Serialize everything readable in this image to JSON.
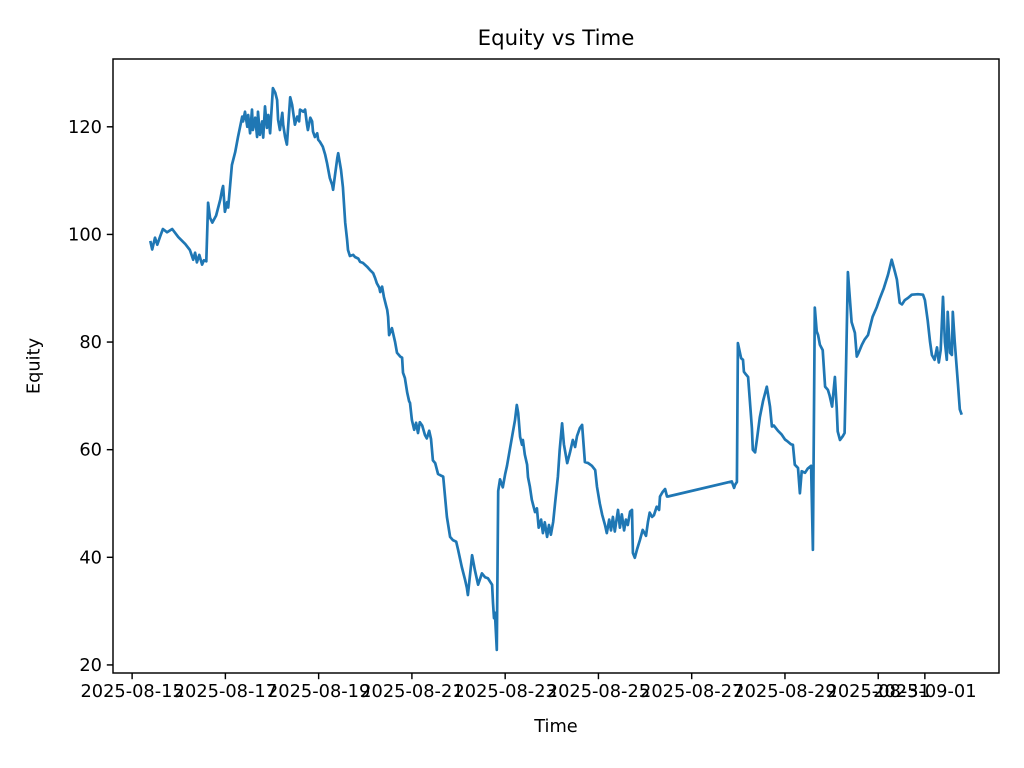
{
  "chart_data": {
    "type": "line",
    "title": "Equity vs Time",
    "xlabel": "Time",
    "ylabel": "Equity",
    "series_name": "Equity",
    "line_color": "#1f77b4",
    "background_color": "#ffffff",
    "text_color": "#000000",
    "grid": false,
    "legend": "none",
    "x_unit": "days since 2025-08-15 00:00",
    "xlim": [
      -0.41,
      18.59
    ],
    "ylim": [
      18.5,
      132.6
    ],
    "x_tick_positions": [
      0,
      2,
      4,
      6,
      8,
      10,
      12,
      14,
      16,
      17
    ],
    "x_tick_labels": [
      "2025-08-15",
      "2025-08-17",
      "2025-08-19",
      "2025-08-21",
      "2025-08-23",
      "2025-08-25",
      "2025-08-27",
      "2025-08-29",
      "2025-08-31",
      "2025-09-01"
    ],
    "y_tick_positions": [
      20,
      40,
      60,
      80,
      100,
      120
    ],
    "y_tick_labels": [
      "20",
      "40",
      "60",
      "80",
      "100",
      "120"
    ],
    "points": [
      [
        0.39,
        98.8
      ],
      [
        0.43,
        97.2
      ],
      [
        0.49,
        99.4
      ],
      [
        0.54,
        98.1
      ],
      [
        0.6,
        99.6
      ],
      [
        0.66,
        101.0
      ],
      [
        0.75,
        100.4
      ],
      [
        0.86,
        101.0
      ],
      [
        0.99,
        99.5
      ],
      [
        1.14,
        98.2
      ],
      [
        1.24,
        97.1
      ],
      [
        1.31,
        95.3
      ],
      [
        1.35,
        96.6
      ],
      [
        1.39,
        94.8
      ],
      [
        1.44,
        96.2
      ],
      [
        1.5,
        94.4
      ],
      [
        1.54,
        95.2
      ],
      [
        1.59,
        95.0
      ],
      [
        1.63,
        105.9
      ],
      [
        1.67,
        103.1
      ],
      [
        1.72,
        102.2
      ],
      [
        1.8,
        103.5
      ],
      [
        1.89,
        106.5
      ],
      [
        1.93,
        108.3
      ],
      [
        1.95,
        109.0
      ],
      [
        1.99,
        104.2
      ],
      [
        2.04,
        106.0
      ],
      [
        2.06,
        105.0
      ],
      [
        2.14,
        112.9
      ],
      [
        2.21,
        115.3
      ],
      [
        2.27,
        118.1
      ],
      [
        2.36,
        121.9
      ],
      [
        2.38,
        121.0
      ],
      [
        2.42,
        122.8
      ],
      [
        2.47,
        120.0
      ],
      [
        2.49,
        122.2
      ],
      [
        2.53,
        118.8
      ],
      [
        2.57,
        123.2
      ],
      [
        2.59,
        119.4
      ],
      [
        2.64,
        121.7
      ],
      [
        2.68,
        118.1
      ],
      [
        2.7,
        122.8
      ],
      [
        2.74,
        118.5
      ],
      [
        2.79,
        121.0
      ],
      [
        2.81,
        118.0
      ],
      [
        2.85,
        123.8
      ],
      [
        2.89,
        119.8
      ],
      [
        2.92,
        122.2
      ],
      [
        2.96,
        118.8
      ],
      [
        3.02,
        127.2
      ],
      [
        3.07,
        126.3
      ],
      [
        3.11,
        125.0
      ],
      [
        3.13,
        121.3
      ],
      [
        3.17,
        119.4
      ],
      [
        3.22,
        122.6
      ],
      [
        3.24,
        120.4
      ],
      [
        3.28,
        118.1
      ],
      [
        3.32,
        116.7
      ],
      [
        3.39,
        125.5
      ],
      [
        3.43,
        124.1
      ],
      [
        3.49,
        120.4
      ],
      [
        3.54,
        121.9
      ],
      [
        3.58,
        121.0
      ],
      [
        3.6,
        123.2
      ],
      [
        3.67,
        122.8
      ],
      [
        3.71,
        123.2
      ],
      [
        3.75,
        120.4
      ],
      [
        3.77,
        119.4
      ],
      [
        3.82,
        121.7
      ],
      [
        3.86,
        121.0
      ],
      [
        3.88,
        119.1
      ],
      [
        3.92,
        118.1
      ],
      [
        3.97,
        118.8
      ],
      [
        3.99,
        117.6
      ],
      [
        4.03,
        117.2
      ],
      [
        4.09,
        116.3
      ],
      [
        4.14,
        114.8
      ],
      [
        4.18,
        113.3
      ],
      [
        4.2,
        112.3
      ],
      [
        4.24,
        110.5
      ],
      [
        4.29,
        109.2
      ],
      [
        4.31,
        108.3
      ],
      [
        4.35,
        111.0
      ],
      [
        4.4,
        114.2
      ],
      [
        4.42,
        115.1
      ],
      [
        4.48,
        112.0
      ],
      [
        4.52,
        108.8
      ],
      [
        4.57,
        102.2
      ],
      [
        4.61,
        99.0
      ],
      [
        4.63,
        97.1
      ],
      [
        4.67,
        96.0
      ],
      [
        4.74,
        96.2
      ],
      [
        4.78,
        95.8
      ],
      [
        4.85,
        95.5
      ],
      [
        4.89,
        94.9
      ],
      [
        4.95,
        94.7
      ],
      [
        5.04,
        94.0
      ],
      [
        5.1,
        93.4
      ],
      [
        5.17,
        92.8
      ],
      [
        5.21,
        91.9
      ],
      [
        5.25,
        90.9
      ],
      [
        5.3,
        90.1
      ],
      [
        5.32,
        89.3
      ],
      [
        5.36,
        90.3
      ],
      [
        5.4,
        88.4
      ],
      [
        5.45,
        86.6
      ],
      [
        5.47,
        86.0
      ],
      [
        5.49,
        84.7
      ],
      [
        5.51,
        81.3
      ],
      [
        5.57,
        82.6
      ],
      [
        5.64,
        80.0
      ],
      [
        5.68,
        78.0
      ],
      [
        5.75,
        77.3
      ],
      [
        5.79,
        77.1
      ],
      [
        5.81,
        74.3
      ],
      [
        5.85,
        73.3
      ],
      [
        5.9,
        70.6
      ],
      [
        5.94,
        69.0
      ],
      [
        5.96,
        68.7
      ],
      [
        6.0,
        65.5
      ],
      [
        6.05,
        63.7
      ],
      [
        6.09,
        65.0
      ],
      [
        6.13,
        63.1
      ],
      [
        6.17,
        65.1
      ],
      [
        6.22,
        64.5
      ],
      [
        6.28,
        62.7
      ],
      [
        6.32,
        62.1
      ],
      [
        6.37,
        63.5
      ],
      [
        6.41,
        62.0
      ],
      [
        6.45,
        58.0
      ],
      [
        6.5,
        57.5
      ],
      [
        6.56,
        55.5
      ],
      [
        6.62,
        55.2
      ],
      [
        6.67,
        55.0
      ],
      [
        6.75,
        47.5
      ],
      [
        6.82,
        43.8
      ],
      [
        6.88,
        43.2
      ],
      [
        6.95,
        42.9
      ],
      [
        6.99,
        41.4
      ],
      [
        7.07,
        38.2
      ],
      [
        7.14,
        35.8
      ],
      [
        7.18,
        34.3
      ],
      [
        7.2,
        33.0
      ],
      [
        7.29,
        40.4
      ],
      [
        7.35,
        37.6
      ],
      [
        7.42,
        34.9
      ],
      [
        7.5,
        37.0
      ],
      [
        7.57,
        36.3
      ],
      [
        7.63,
        36.1
      ],
      [
        7.72,
        34.9
      ],
      [
        7.74,
        31.5
      ],
      [
        7.76,
        28.7
      ],
      [
        7.78,
        29.7
      ],
      [
        7.82,
        22.8
      ],
      [
        7.85,
        52.3
      ],
      [
        7.89,
        54.5
      ],
      [
        7.95,
        53.0
      ],
      [
        8.0,
        55.5
      ],
      [
        8.04,
        57.0
      ],
      [
        8.1,
        60.0
      ],
      [
        8.17,
        63.5
      ],
      [
        8.21,
        65.5
      ],
      [
        8.25,
        68.3
      ],
      [
        8.28,
        66.8
      ],
      [
        8.32,
        62.4
      ],
      [
        8.36,
        60.9
      ],
      [
        8.38,
        61.8
      ],
      [
        8.42,
        59.1
      ],
      [
        8.47,
        57.2
      ],
      [
        8.49,
        54.9
      ],
      [
        8.53,
        53.1
      ],
      [
        8.57,
        50.7
      ],
      [
        8.6,
        49.7
      ],
      [
        8.64,
        48.4
      ],
      [
        8.68,
        49.1
      ],
      [
        8.72,
        45.5
      ],
      [
        8.77,
        47.0
      ],
      [
        8.81,
        44.5
      ],
      [
        8.85,
        46.5
      ],
      [
        8.9,
        43.8
      ],
      [
        8.94,
        46.0
      ],
      [
        8.98,
        44.2
      ],
      [
        9.03,
        46.6
      ],
      [
        9.07,
        50.1
      ],
      [
        9.13,
        55.0
      ],
      [
        9.17,
        60.0
      ],
      [
        9.22,
        64.9
      ],
      [
        9.26,
        61.0
      ],
      [
        9.33,
        57.5
      ],
      [
        9.39,
        59.5
      ],
      [
        9.45,
        61.8
      ],
      [
        9.5,
        60.5
      ],
      [
        9.54,
        62.5
      ],
      [
        9.6,
        64.0
      ],
      [
        9.65,
        64.6
      ],
      [
        9.71,
        57.7
      ],
      [
        9.78,
        57.5
      ],
      [
        9.86,
        57.0
      ],
      [
        9.93,
        56.2
      ],
      [
        9.97,
        53.1
      ],
      [
        10.03,
        50.0
      ],
      [
        10.08,
        47.9
      ],
      [
        10.14,
        46.0
      ],
      [
        10.18,
        44.5
      ],
      [
        10.23,
        47.0
      ],
      [
        10.27,
        45.0
      ],
      [
        10.31,
        47.5
      ],
      [
        10.35,
        44.8
      ],
      [
        10.42,
        48.8
      ],
      [
        10.46,
        45.5
      ],
      [
        10.5,
        48.0
      ],
      [
        10.55,
        45.0
      ],
      [
        10.59,
        47.0
      ],
      [
        10.63,
        46.0
      ],
      [
        10.68,
        48.5
      ],
      [
        10.72,
        48.8
      ],
      [
        10.74,
        40.8
      ],
      [
        10.78,
        39.9
      ],
      [
        10.83,
        41.5
      ],
      [
        10.89,
        43.2
      ],
      [
        10.95,
        45.1
      ],
      [
        11.02,
        44.0
      ],
      [
        11.06,
        46.5
      ],
      [
        11.1,
        48.3
      ],
      [
        11.15,
        47.5
      ],
      [
        11.19,
        47.8
      ],
      [
        11.25,
        49.4
      ],
      [
        11.3,
        48.8
      ],
      [
        11.32,
        51.3
      ],
      [
        11.38,
        52.2
      ],
      [
        11.43,
        52.7
      ],
      [
        11.47,
        51.3
      ],
      [
        11.49,
        51.3
      ],
      [
        12.86,
        54.1
      ],
      [
        12.91,
        52.9
      ],
      [
        12.93,
        53.5
      ],
      [
        12.97,
        54.0
      ],
      [
        12.99,
        79.8
      ],
      [
        13.06,
        77.0
      ],
      [
        13.1,
        76.7
      ],
      [
        13.12,
        74.5
      ],
      [
        13.16,
        74.0
      ],
      [
        13.21,
        73.5
      ],
      [
        13.29,
        64.0
      ],
      [
        13.31,
        60.0
      ],
      [
        13.36,
        59.5
      ],
      [
        13.4,
        62.0
      ],
      [
        13.46,
        66.0
      ],
      [
        13.53,
        69.0
      ],
      [
        13.61,
        71.7
      ],
      [
        13.68,
        68.0
      ],
      [
        13.72,
        64.3
      ],
      [
        13.76,
        64.5
      ],
      [
        13.85,
        63.5
      ],
      [
        13.93,
        62.8
      ],
      [
        14.0,
        61.9
      ],
      [
        14.06,
        61.5
      ],
      [
        14.13,
        61.0
      ],
      [
        14.17,
        60.9
      ],
      [
        14.21,
        57.2
      ],
      [
        14.28,
        56.6
      ],
      [
        14.32,
        51.9
      ],
      [
        14.36,
        56.0
      ],
      [
        14.43,
        55.7
      ],
      [
        14.49,
        56.5
      ],
      [
        14.56,
        57.0
      ],
      [
        14.6,
        41.4
      ],
      [
        14.64,
        86.4
      ],
      [
        14.68,
        82.0
      ],
      [
        14.71,
        81.3
      ],
      [
        14.75,
        79.5
      ],
      [
        14.81,
        78.5
      ],
      [
        14.86,
        71.7
      ],
      [
        14.92,
        71.1
      ],
      [
        14.96,
        70.0
      ],
      [
        15.01,
        68.0
      ],
      [
        15.07,
        73.5
      ],
      [
        15.11,
        67.8
      ],
      [
        15.13,
        63.4
      ],
      [
        15.18,
        61.8
      ],
      [
        15.24,
        62.5
      ],
      [
        15.28,
        63.1
      ],
      [
        15.31,
        75.0
      ],
      [
        15.35,
        93.0
      ],
      [
        15.43,
        83.7
      ],
      [
        15.5,
        81.7
      ],
      [
        15.54,
        77.3
      ],
      [
        15.58,
        78.0
      ],
      [
        15.65,
        79.5
      ],
      [
        15.71,
        80.5
      ],
      [
        15.78,
        81.3
      ],
      [
        15.88,
        84.7
      ],
      [
        15.97,
        86.5
      ],
      [
        16.03,
        88.0
      ],
      [
        16.12,
        90.0
      ],
      [
        16.21,
        92.5
      ],
      [
        16.29,
        95.3
      ],
      [
        16.36,
        93.0
      ],
      [
        16.4,
        91.6
      ],
      [
        16.46,
        87.3
      ],
      [
        16.51,
        87.0
      ],
      [
        16.57,
        87.8
      ],
      [
        16.64,
        88.2
      ],
      [
        16.72,
        88.8
      ],
      [
        16.85,
        88.9
      ],
      [
        16.96,
        88.8
      ],
      [
        17.0,
        87.8
      ],
      [
        17.06,
        84.0
      ],
      [
        17.11,
        80.1
      ],
      [
        17.15,
        77.6
      ],
      [
        17.21,
        76.7
      ],
      [
        17.26,
        79.0
      ],
      [
        17.3,
        76.2
      ],
      [
        17.34,
        78.5
      ],
      [
        17.39,
        88.4
      ],
      [
        17.43,
        80.0
      ],
      [
        17.47,
        76.7
      ],
      [
        17.49,
        85.6
      ],
      [
        17.54,
        78.0
      ],
      [
        17.58,
        77.6
      ],
      [
        17.6,
        85.6
      ],
      [
        17.64,
        80.1
      ],
      [
        17.71,
        72.1
      ],
      [
        17.75,
        67.5
      ],
      [
        17.79,
        66.5
      ]
    ]
  }
}
